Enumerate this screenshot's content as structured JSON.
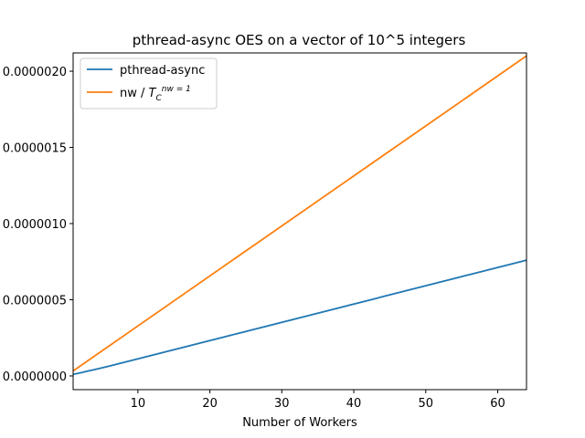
{
  "chart_data": {
    "type": "line",
    "title": "pthread-async OES on a vector of 10^5 integers",
    "xlabel": "Number of Workers",
    "ylabel": "",
    "xlim": [
      1,
      64
    ],
    "ylim": [
      -9e-08,
      2.12e-06
    ],
    "xticks": [
      10,
      20,
      30,
      40,
      50,
      60
    ],
    "yticks": [
      0.0,
      5e-07,
      1e-06,
      1.5e-06,
      2e-06
    ],
    "ytick_labels": [
      "0.0000000",
      "0.0000005",
      "0.0000010",
      "0.0000015",
      "0.0000020"
    ],
    "grid": false,
    "legend_position": "top-left",
    "series": [
      {
        "name": "pthread-async",
        "color": "#1f77b4",
        "x": [
          1,
          2,
          3,
          4,
          5,
          6,
          7,
          8,
          9,
          10,
          11,
          12,
          13,
          14,
          15,
          16,
          17,
          18,
          19,
          20,
          21,
          22,
          23,
          24,
          25,
          26,
          27,
          28,
          29,
          30,
          31,
          32,
          33,
          34,
          35,
          36,
          37,
          38,
          39,
          40,
          41,
          42,
          43,
          44,
          45,
          46,
          47,
          48,
          49,
          50,
          51,
          52,
          53,
          54,
          55,
          56,
          57,
          58,
          59,
          60,
          61,
          62,
          63,
          64
        ],
        "y": [
          1e-08,
          2e-08,
          3.1e-08,
          4.2e-08,
          5.3e-08,
          6.4e-08,
          7.6e-08,
          8.8e-08,
          1e-07,
          1.12e-07,
          1.24e-07,
          1.36e-07,
          1.48e-07,
          1.6e-07,
          1.72e-07,
          1.84e-07,
          1.96e-07,
          2.08e-07,
          2.2e-07,
          2.32e-07,
          2.44e-07,
          2.56e-07,
          2.68e-07,
          2.8e-07,
          2.92e-07,
          3.04e-07,
          3.16e-07,
          3.28e-07,
          3.4e-07,
          3.52e-07,
          3.64e-07,
          3.76e-07,
          3.88e-07,
          4e-07,
          4.12e-07,
          4.24e-07,
          4.36e-07,
          4.48e-07,
          4.6e-07,
          4.72e-07,
          4.84e-07,
          4.96e-07,
          5.08e-07,
          5.2e-07,
          5.32e-07,
          5.44e-07,
          5.56e-07,
          5.68e-07,
          5.8e-07,
          5.92e-07,
          6.04e-07,
          6.16e-07,
          6.28e-07,
          6.4e-07,
          6.52e-07,
          6.64e-07,
          6.76e-07,
          6.88e-07,
          7e-07,
          7.12e-07,
          7.24e-07,
          7.36e-07,
          7.48e-07,
          7.6e-07
        ]
      },
      {
        "name": "nw / ",
        "color": "#ff7f0e",
        "x": [
          1,
          64
        ],
        "y": [
          3.3e-08,
          2.1e-06
        ]
      }
    ]
  }
}
